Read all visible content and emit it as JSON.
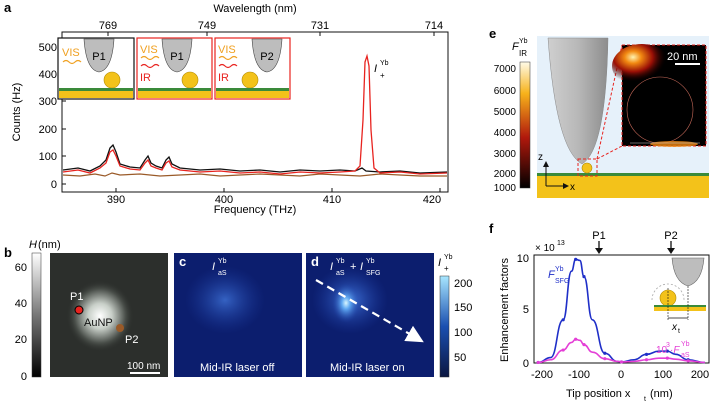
{
  "panels": {
    "a": "a",
    "b": "b",
    "c": "c",
    "d": "d",
    "e": "e",
    "f": "f"
  },
  "colors": {
    "black": "#111111",
    "red": "#e8231f",
    "brown": "#9a5a28",
    "blue": "#1f2fc8",
    "magenta": "#e43fd6",
    "gold": "#f3c21a",
    "green": "#3a8a3a",
    "orange": "#f0a020"
  },
  "panel_a": {
    "top_axis_label": "Wavelength (nm)",
    "top_ticks": [
      "769",
      "749",
      "731",
      "714"
    ],
    "bottom_axis_label": "Frequency (THz)",
    "bottom_ticks": [
      "390",
      "400",
      "410",
      "420"
    ],
    "y_axis_label": "Counts (Hz)",
    "y_ticks": [
      "0",
      "100",
      "200",
      "300",
      "400",
      "500"
    ],
    "peak_label": {
      "main": "I",
      "sup": "Yb",
      "sub": "+"
    },
    "insets": [
      {
        "labels": [
          "VIS"
        ],
        "probe": "P1"
      },
      {
        "labels": [
          "VIS",
          "IR"
        ],
        "probe": "P1"
      },
      {
        "labels": [
          "VIS",
          "IR"
        ],
        "probe": "P2"
      }
    ]
  },
  "panel_b": {
    "colorbar_title": "H",
    "colorbar_unit": "(nm)",
    "colorbar_ticks": [
      "60",
      "40",
      "20",
      "0"
    ],
    "p1": "P1",
    "p2": "P2",
    "particle": "AuNP",
    "scale": "100 nm"
  },
  "panel_c": {
    "label": {
      "main": "I",
      "sup": "Yb",
      "sub": "aS"
    },
    "caption": "Mid-IR laser off"
  },
  "panel_d": {
    "label": {
      "a_main": "I",
      "a_sup": "Yb",
      "a_sub": "aS",
      "plus": "+",
      "b_main": "I",
      "b_sup": "Yb",
      "b_sub": "SFG"
    },
    "caption": "Mid-IR laser on",
    "cb_title": {
      "main": "I",
      "sup": "Yb",
      "sub": "+"
    },
    "cb_ticks": [
      "200",
      "150",
      "100",
      "50"
    ]
  },
  "panel_e": {
    "title": {
      "main": "F",
      "sup": "Yb",
      "sub": "IR"
    },
    "ticks": [
      "7000",
      "6000",
      "5000",
      "4000",
      "3000",
      "2000",
      "1000"
    ],
    "scale": "20 nm",
    "axis_z": "z",
    "axis_x": "x"
  },
  "panel_f": {
    "multiplier": "× 10",
    "multiplier_exp": "13",
    "y_axis_label": "Enhancement factors",
    "x_axis_label": "Tip position x",
    "x_axis_sub": "t",
    "x_axis_unit": "(nm)",
    "y_ticks": [
      "0",
      "5",
      "10"
    ],
    "x_ticks": [
      "-200",
      "-100",
      "0",
      "100",
      "200"
    ],
    "markers": [
      "P1",
      "P2"
    ],
    "sfg_label": {
      "main": "F",
      "sup": "Yb",
      "sub": "SFG"
    },
    "as_label": {
      "prefix": "10",
      "exp": "3",
      "dot": "·F",
      "sup": "Yb",
      "sub": "aS"
    },
    "inset_label": "x",
    "inset_sub": "t"
  },
  "chart_data": {
    "type": "line",
    "title": "",
    "xlabel": "Tip position x_t (nm)",
    "ylabel": "Enhancement factors (×10^13)",
    "xlim": [
      -210,
      210
    ],
    "ylim": [
      0,
      10
    ],
    "series": [
      {
        "name": "F_SFG",
        "x": [
          -200,
          -170,
          -140,
          -120,
          -110,
          -100,
          -90,
          -70,
          -40,
          -10,
          0,
          30,
          60,
          90,
          110,
          130,
          160,
          200
        ],
        "values": [
          0.05,
          0.5,
          4.0,
          8.5,
          9.6,
          9.5,
          8.0,
          4.0,
          0.9,
          0.15,
          0.1,
          0.3,
          0.8,
          1.1,
          1.1,
          0.8,
          0.3,
          0.05
        ]
      },
      {
        "name": "10^3·F_aS",
        "x": [
          -200,
          -170,
          -140,
          -120,
          -110,
          -100,
          -90,
          -70,
          -40,
          -10,
          0,
          30,
          60,
          90,
          110,
          130,
          160,
          200
        ],
        "values": [
          0.05,
          0.3,
          1.2,
          1.9,
          2.2,
          2.1,
          1.7,
          1.0,
          0.4,
          0.15,
          0.1,
          0.15,
          0.3,
          0.45,
          0.45,
          0.35,
          0.2,
          0.05
        ]
      }
    ]
  }
}
